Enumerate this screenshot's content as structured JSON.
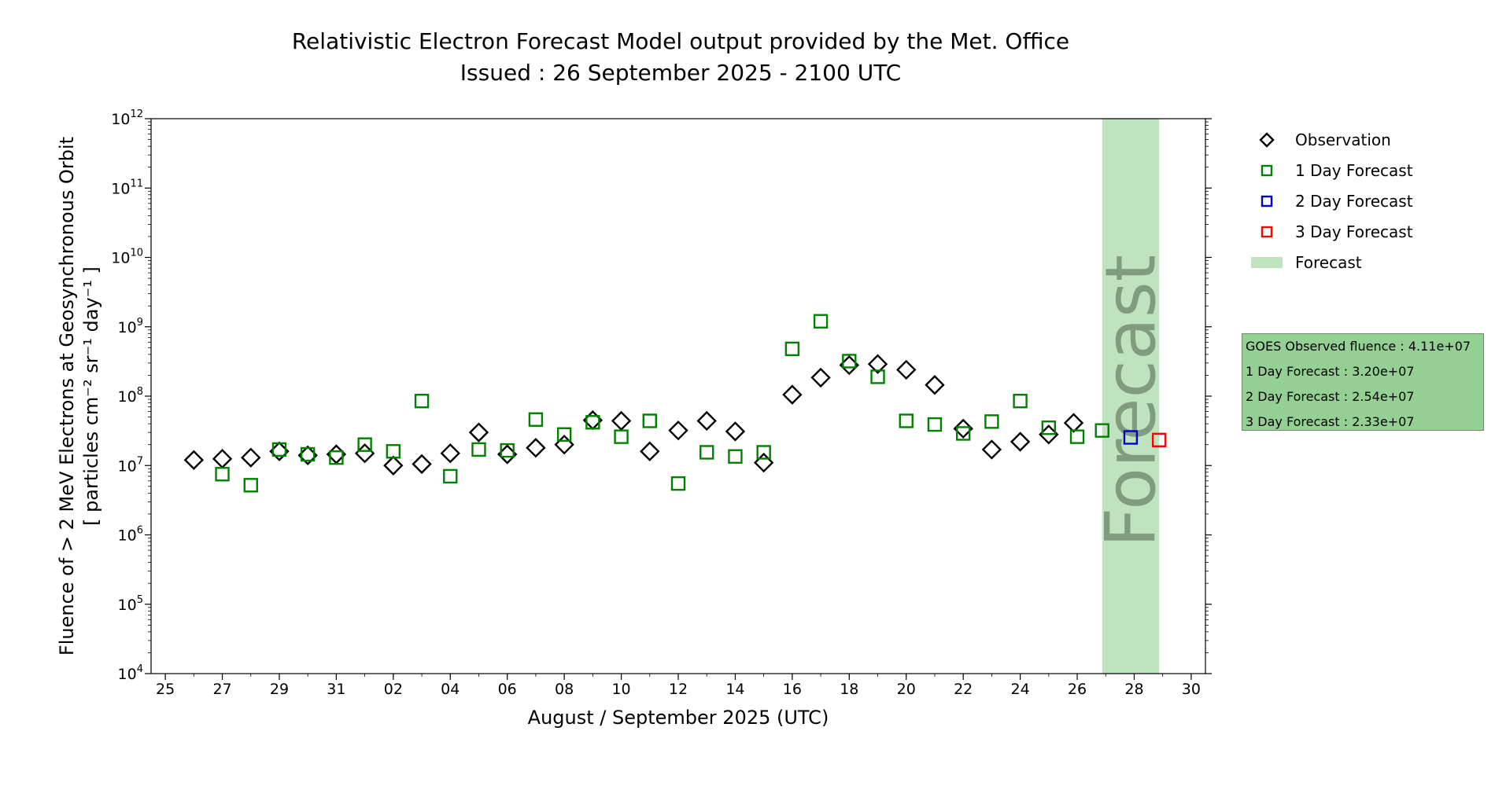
{
  "chart_data": {
    "type": "scatter",
    "title": "Relativistic Electron Forecast Model output provided by the Met. Office",
    "subtitle": "Issued : 26 September 2025 - 2100 UTC",
    "xlabel": "August / September 2025 (UTC)",
    "ylabel_line1": "Fluence of > 2 MeV Electrons at Geosynchronous Orbit",
    "ylabel_line2": "[ particles cm⁻² sr⁻¹ day⁻¹ ]",
    "xlim": [
      "2025-08-24T12:00",
      "2025-09-30T12:00"
    ],
    "ylim": [
      10000,
      1000000000000
    ],
    "yscale": "log",
    "x_ticks": [
      {
        "date": "2025-08-25",
        "label": "25"
      },
      {
        "date": "2025-08-27",
        "label": "27"
      },
      {
        "date": "2025-08-29",
        "label": "29"
      },
      {
        "date": "2025-08-31",
        "label": "31"
      },
      {
        "date": "2025-09-02",
        "label": "02"
      },
      {
        "date": "2025-09-04",
        "label": "04"
      },
      {
        "date": "2025-09-06",
        "label": "06"
      },
      {
        "date": "2025-09-08",
        "label": "08"
      },
      {
        "date": "2025-09-10",
        "label": "10"
      },
      {
        "date": "2025-09-12",
        "label": "12"
      },
      {
        "date": "2025-09-14",
        "label": "14"
      },
      {
        "date": "2025-09-16",
        "label": "16"
      },
      {
        "date": "2025-09-18",
        "label": "18"
      },
      {
        "date": "2025-09-20",
        "label": "20"
      },
      {
        "date": "2025-09-22",
        "label": "22"
      },
      {
        "date": "2025-09-24",
        "label": "24"
      },
      {
        "date": "2025-09-26",
        "label": "26"
      },
      {
        "date": "2025-09-28",
        "label": "28"
      },
      {
        "date": "2025-09-30",
        "label": "30"
      }
    ],
    "y_ticks": [
      {
        "value": 10000,
        "base": "10",
        "exp": "4"
      },
      {
        "value": 100000,
        "base": "10",
        "exp": "5"
      },
      {
        "value": 1000000,
        "base": "10",
        "exp": "6"
      },
      {
        "value": 10000000,
        "base": "10",
        "exp": "7"
      },
      {
        "value": 100000000,
        "base": "10",
        "exp": "8"
      },
      {
        "value": 1000000000,
        "base": "10",
        "exp": "9"
      },
      {
        "value": 10000000000,
        "base": "10",
        "exp": "10"
      },
      {
        "value": 100000000000,
        "base": "10",
        "exp": "11"
      },
      {
        "value": 1000000000000,
        "base": "10",
        "exp": "12"
      }
    ],
    "forecast_span": {
      "start": "2025-09-26T21:00",
      "end": "2025-09-28T21:00",
      "label": "Forecast",
      "color": "#bfe3bf"
    },
    "legend_position": "right",
    "series": [
      {
        "name": "Observation",
        "marker": "diamond",
        "color": "#000000",
        "points": [
          {
            "date": "2025-08-26T00:00",
            "value": 12000000
          },
          {
            "date": "2025-08-27T00:00",
            "value": 12500000
          },
          {
            "date": "2025-08-28T00:00",
            "value": 13000000
          },
          {
            "date": "2025-08-29T00:00",
            "value": 16000000
          },
          {
            "date": "2025-08-30T00:00",
            "value": 14000000
          },
          {
            "date": "2025-08-31T00:00",
            "value": 14500000
          },
          {
            "date": "2025-09-01T00:00",
            "value": 15000000
          },
          {
            "date": "2025-09-02T00:00",
            "value": 10000000
          },
          {
            "date": "2025-09-03T00:00",
            "value": 10500000
          },
          {
            "date": "2025-09-04T00:00",
            "value": 15000000
          },
          {
            "date": "2025-09-05T00:00",
            "value": 30000000
          },
          {
            "date": "2025-09-06T00:00",
            "value": 14500000
          },
          {
            "date": "2025-09-07T00:00",
            "value": 18000000
          },
          {
            "date": "2025-09-08T00:00",
            "value": 20000000
          },
          {
            "date": "2025-09-09T00:00",
            "value": 45000000
          },
          {
            "date": "2025-09-10T00:00",
            "value": 44000000
          },
          {
            "date": "2025-09-11T00:00",
            "value": 16000000
          },
          {
            "date": "2025-09-12T00:00",
            "value": 32000000
          },
          {
            "date": "2025-09-13T00:00",
            "value": 44000000
          },
          {
            "date": "2025-09-14T00:00",
            "value": 31000000
          },
          {
            "date": "2025-09-15T00:00",
            "value": 11000000
          },
          {
            "date": "2025-09-16T00:00",
            "value": 105000000
          },
          {
            "date": "2025-09-17T00:00",
            "value": 185000000
          },
          {
            "date": "2025-09-18T00:00",
            "value": 280000000
          },
          {
            "date": "2025-09-19T00:00",
            "value": 290000000
          },
          {
            "date": "2025-09-20T00:00",
            "value": 240000000
          },
          {
            "date": "2025-09-21T00:00",
            "value": 145000000
          },
          {
            "date": "2025-09-22T00:00",
            "value": 34000000
          },
          {
            "date": "2025-09-23T00:00",
            "value": 17000000
          },
          {
            "date": "2025-09-24T00:00",
            "value": 22000000
          },
          {
            "date": "2025-09-25T00:00",
            "value": 28000000
          },
          {
            "date": "2025-09-25T21:00",
            "value": 41100000
          }
        ]
      },
      {
        "name": "1 Day Forecast",
        "marker": "square",
        "color": "#008000",
        "points": [
          {
            "date": "2025-08-27T00:00",
            "value": 7500000
          },
          {
            "date": "2025-08-28T00:00",
            "value": 5200000
          },
          {
            "date": "2025-08-29T00:00",
            "value": 17000000
          },
          {
            "date": "2025-08-30T00:00",
            "value": 14500000
          },
          {
            "date": "2025-08-31T00:00",
            "value": 13000000
          },
          {
            "date": "2025-09-01T00:00",
            "value": 20000000
          },
          {
            "date": "2025-09-02T00:00",
            "value": 16000000
          },
          {
            "date": "2025-09-03T00:00",
            "value": 85000000
          },
          {
            "date": "2025-09-04T00:00",
            "value": 7000000
          },
          {
            "date": "2025-09-05T00:00",
            "value": 17000000
          },
          {
            "date": "2025-09-06T00:00",
            "value": 16500000
          },
          {
            "date": "2025-09-07T00:00",
            "value": 46000000
          },
          {
            "date": "2025-09-08T00:00",
            "value": 28000000
          },
          {
            "date": "2025-09-09T00:00",
            "value": 42000000
          },
          {
            "date": "2025-09-10T00:00",
            "value": 26000000
          },
          {
            "date": "2025-09-11T00:00",
            "value": 44000000
          },
          {
            "date": "2025-09-12T00:00",
            "value": 5500000
          },
          {
            "date": "2025-09-13T00:00",
            "value": 15500000
          },
          {
            "date": "2025-09-14T00:00",
            "value": 13500000
          },
          {
            "date": "2025-09-15T00:00",
            "value": 15500000
          },
          {
            "date": "2025-09-16T00:00",
            "value": 480000000
          },
          {
            "date": "2025-09-17T00:00",
            "value": 1200000000
          },
          {
            "date": "2025-09-18T00:00",
            "value": 320000000
          },
          {
            "date": "2025-09-19T00:00",
            "value": 190000000
          },
          {
            "date": "2025-09-20T00:00",
            "value": 44000000
          },
          {
            "date": "2025-09-21T00:00",
            "value": 39000000
          },
          {
            "date": "2025-09-22T00:00",
            "value": 29000000
          },
          {
            "date": "2025-09-23T00:00",
            "value": 43000000
          },
          {
            "date": "2025-09-24T00:00",
            "value": 85000000
          },
          {
            "date": "2025-09-25T00:00",
            "value": 35000000
          },
          {
            "date": "2025-09-26T00:00",
            "value": 26000000
          },
          {
            "date": "2025-09-26T21:00",
            "value": 32000000
          }
        ]
      },
      {
        "name": "2 Day Forecast",
        "marker": "square",
        "color": "#0000cc",
        "points": [
          {
            "date": "2025-09-27T21:00",
            "value": 25400000
          }
        ]
      },
      {
        "name": "3 Day Forecast",
        "marker": "square",
        "color": "#ff0000",
        "points": [
          {
            "date": "2025-09-28T21:00",
            "value": 23300000
          }
        ]
      }
    ],
    "legend": [
      {
        "label": "Observation",
        "marker": "diamond",
        "color": "#000000"
      },
      {
        "label": "1 Day Forecast",
        "marker": "square",
        "color": "#008000"
      },
      {
        "label": "2 Day Forecast",
        "marker": "square",
        "color": "#0000cc"
      },
      {
        "label": "3 Day Forecast",
        "marker": "square",
        "color": "#ff0000"
      },
      {
        "label": "Forecast",
        "marker": "patch",
        "color": "#bfe3bf"
      }
    ],
    "stats_box": [
      "GOES Observed fluence : 4.11e+07",
      "1 Day Forecast : 3.20e+07",
      "2 Day Forecast : 2.54e+07",
      "3 Day Forecast : 2.33e+07"
    ]
  }
}
